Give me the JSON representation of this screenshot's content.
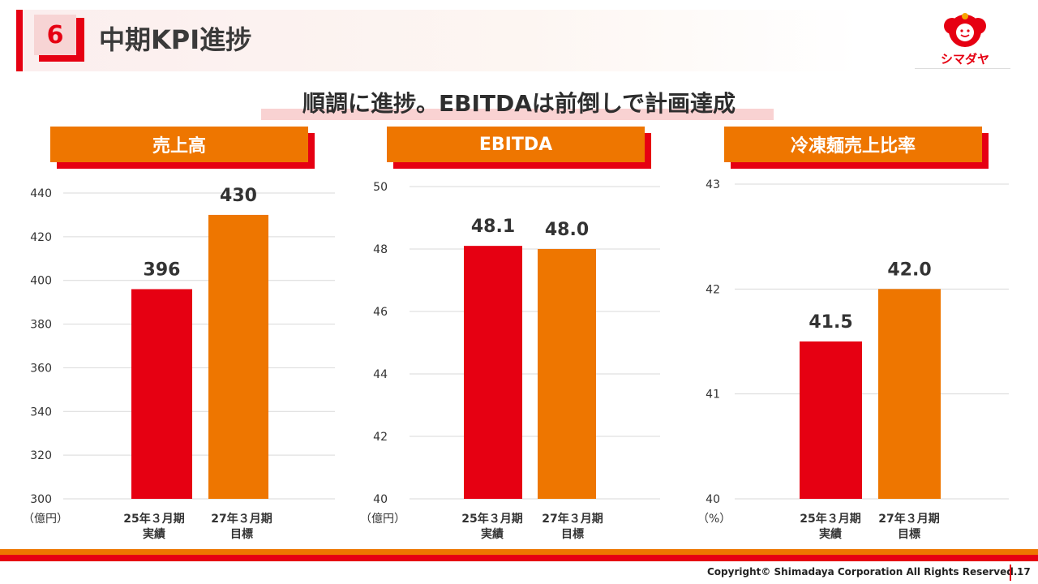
{
  "header": {
    "section_number": "6",
    "title": "中期KPI進捗",
    "logo_text": "シマダヤ"
  },
  "headline": "順調に進捗。EBITDAは前倒しで計画達成",
  "colors": {
    "red": "#e60012",
    "orange": "#ee7600",
    "grid": "#d9d9d9"
  },
  "chart_data": [
    {
      "type": "bar",
      "title": "売上高",
      "unit": "（億円）",
      "categories": [
        [
          "25年３月期",
          "実績"
        ],
        [
          "27年３月期",
          "目標"
        ]
      ],
      "values": [
        396,
        430
      ],
      "value_labels": [
        "396",
        "430"
      ],
      "ylim": [
        300,
        440
      ],
      "yticks": [
        300,
        320,
        340,
        360,
        380,
        400,
        420,
        440
      ],
      "bar_colors": [
        "#e60012",
        "#ee7600"
      ],
      "grid": true
    },
    {
      "type": "bar",
      "title": "EBITDA",
      "unit": "（億円）",
      "categories": [
        [
          "25年３月期",
          "実績"
        ],
        [
          "27年３月期",
          "目標"
        ]
      ],
      "values": [
        48.1,
        48.0
      ],
      "value_labels": [
        "48.1",
        "48.0"
      ],
      "ylim": [
        40,
        50
      ],
      "yticks": [
        40,
        42,
        44,
        46,
        48,
        50
      ],
      "bar_colors": [
        "#e60012",
        "#ee7600"
      ],
      "grid": true
    },
    {
      "type": "bar",
      "title": "冷凍麺売上比率",
      "unit": "（%）",
      "categories": [
        [
          "25年３月期",
          "実績"
        ],
        [
          "27年３月期",
          "目標"
        ]
      ],
      "values": [
        41.5,
        42.0
      ],
      "value_labels": [
        "41.5",
        "42.0"
      ],
      "ylim": [
        40,
        43
      ],
      "yticks": [
        40,
        41,
        42,
        43
      ],
      "bar_colors": [
        "#e60012",
        "#ee7600"
      ],
      "grid": true
    }
  ],
  "footer": {
    "copyright": "Copyright© Shimadaya Corporation All Rights Reserved.",
    "page_number": "17"
  }
}
